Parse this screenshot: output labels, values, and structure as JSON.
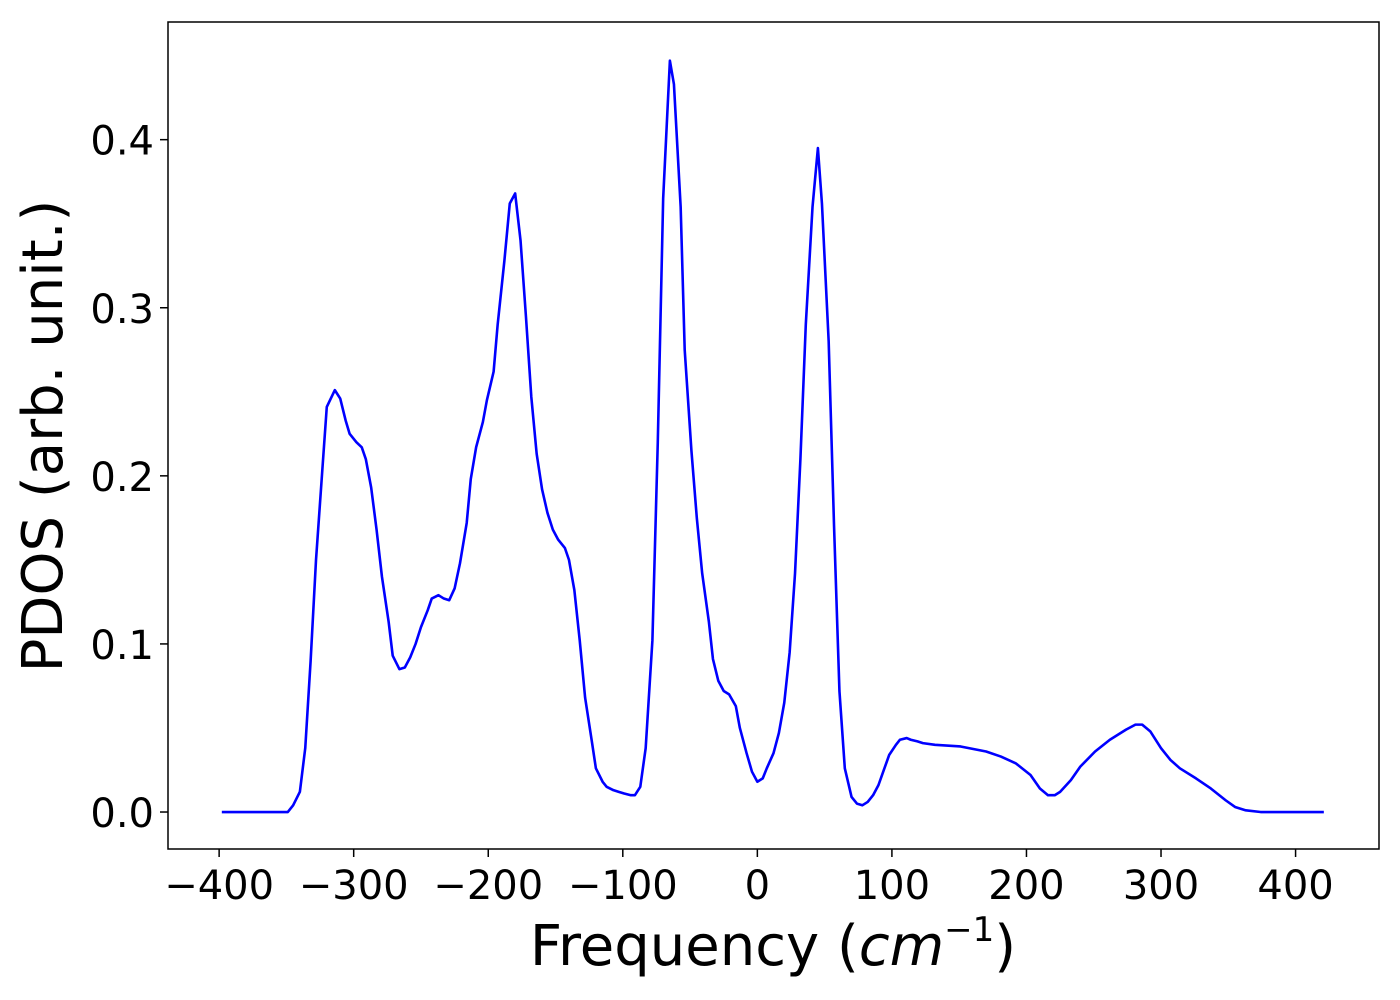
{
  "chart_data": {
    "type": "line",
    "xlabel_parts": [
      "Frequency (",
      "cm",
      "−1",
      ")"
    ],
    "ylabel": "PDOS (arb. unit.)",
    "xlim": [
      -438,
      462
    ],
    "ylim": [
      -0.022,
      0.47
    ],
    "xticks": [
      {
        "value": -400,
        "label": "−400"
      },
      {
        "value": -300,
        "label": "−300"
      },
      {
        "value": -200,
        "label": "−200"
      },
      {
        "value": -100,
        "label": "−100"
      },
      0,
      100,
      200,
      300,
      400
    ],
    "yticks": [
      {
        "value": 0,
        "label": "0.0"
      },
      0.1,
      0.2,
      0.3,
      0.4
    ],
    "grid": false,
    "series": [
      {
        "color": "#0000ff",
        "x": [
          -398,
          -349,
          -345,
          -340,
          -336,
          -332,
          -328,
          -323,
          -320,
          -314,
          -310,
          -306,
          -303,
          -298,
          -294,
          -291,
          -287,
          -283,
          -279,
          -274,
          -271,
          -266,
          -262,
          -258,
          -254,
          -250,
          -245,
          -242,
          -237,
          -233,
          -229,
          -225,
          -221,
          -216,
          -213,
          -209,
          -204,
          -201,
          -196,
          -193,
          -188,
          -184,
          -180,
          -176,
          -172,
          -168,
          -164,
          -160,
          -156,
          -152,
          -148,
          -143,
          -140,
          -136,
          -132,
          -128,
          -123,
          -120,
          -115,
          -112,
          -107,
          -103,
          -99,
          -94,
          -91,
          -87,
          -83,
          -78,
          -74,
          -70,
          -65,
          -62,
          -57,
          -54,
          -49,
          -45,
          -41,
          -36,
          -33,
          -29,
          -25,
          -21,
          -16,
          -13,
          -8,
          -4,
          0,
          4,
          7,
          12,
          16,
          20,
          24,
          28,
          32,
          36,
          41,
          45,
          48,
          53,
          57,
          61,
          65,
          70,
          74,
          78,
          82,
          86,
          90,
          94,
          98,
          103,
          106,
          111,
          114,
          119,
          123,
          132,
          151,
          170,
          181,
          192,
          203,
          210,
          216,
          221,
          225,
          233,
          240,
          251,
          262,
          274,
          281,
          286,
          292,
          300,
          307,
          314,
          326,
          337,
          348,
          355,
          363,
          374,
          421
        ],
        "values": [
          0,
          0,
          0.004,
          0.012,
          0.038,
          0.09,
          0.15,
          0.207,
          0.241,
          0.251,
          0.246,
          0.233,
          0.225,
          0.22,
          0.217,
          0.21,
          0.193,
          0.168,
          0.14,
          0.113,
          0.093,
          0.085,
          0.086,
          0.092,
          0.1,
          0.11,
          0.12,
          0.127,
          0.129,
          0.127,
          0.126,
          0.133,
          0.148,
          0.172,
          0.198,
          0.217,
          0.232,
          0.245,
          0.262,
          0.29,
          0.328,
          0.362,
          0.368,
          0.34,
          0.295,
          0.247,
          0.213,
          0.192,
          0.178,
          0.168,
          0.162,
          0.157,
          0.15,
          0.132,
          0.102,
          0.068,
          0.042,
          0.026,
          0.018,
          0.015,
          0.013,
          0.012,
          0.011,
          0.01,
          0.01,
          0.015,
          0.038,
          0.102,
          0.22,
          0.365,
          0.447,
          0.433,
          0.36,
          0.275,
          0.215,
          0.175,
          0.142,
          0.113,
          0.091,
          0.078,
          0.072,
          0.07,
          0.063,
          0.05,
          0.035,
          0.024,
          0.018,
          0.02,
          0.026,
          0.035,
          0.047,
          0.065,
          0.095,
          0.142,
          0.21,
          0.29,
          0.36,
          0.395,
          0.362,
          0.28,
          0.17,
          0.072,
          0.026,
          0.009,
          0.005,
          0.004,
          0.006,
          0.01,
          0.016,
          0.025,
          0.034,
          0.04,
          0.043,
          0.044,
          0.043,
          0.042,
          0.041,
          0.04,
          0.039,
          0.036,
          0.033,
          0.029,
          0.022,
          0.014,
          0.01,
          0.01,
          0.012,
          0.019,
          0.027,
          0.036,
          0.043,
          0.049,
          0.052,
          0.052,
          0.048,
          0.038,
          0.031,
          0.026,
          0.02,
          0.014,
          0.007,
          0.003,
          0.001,
          0,
          0
        ]
      }
    ]
  }
}
